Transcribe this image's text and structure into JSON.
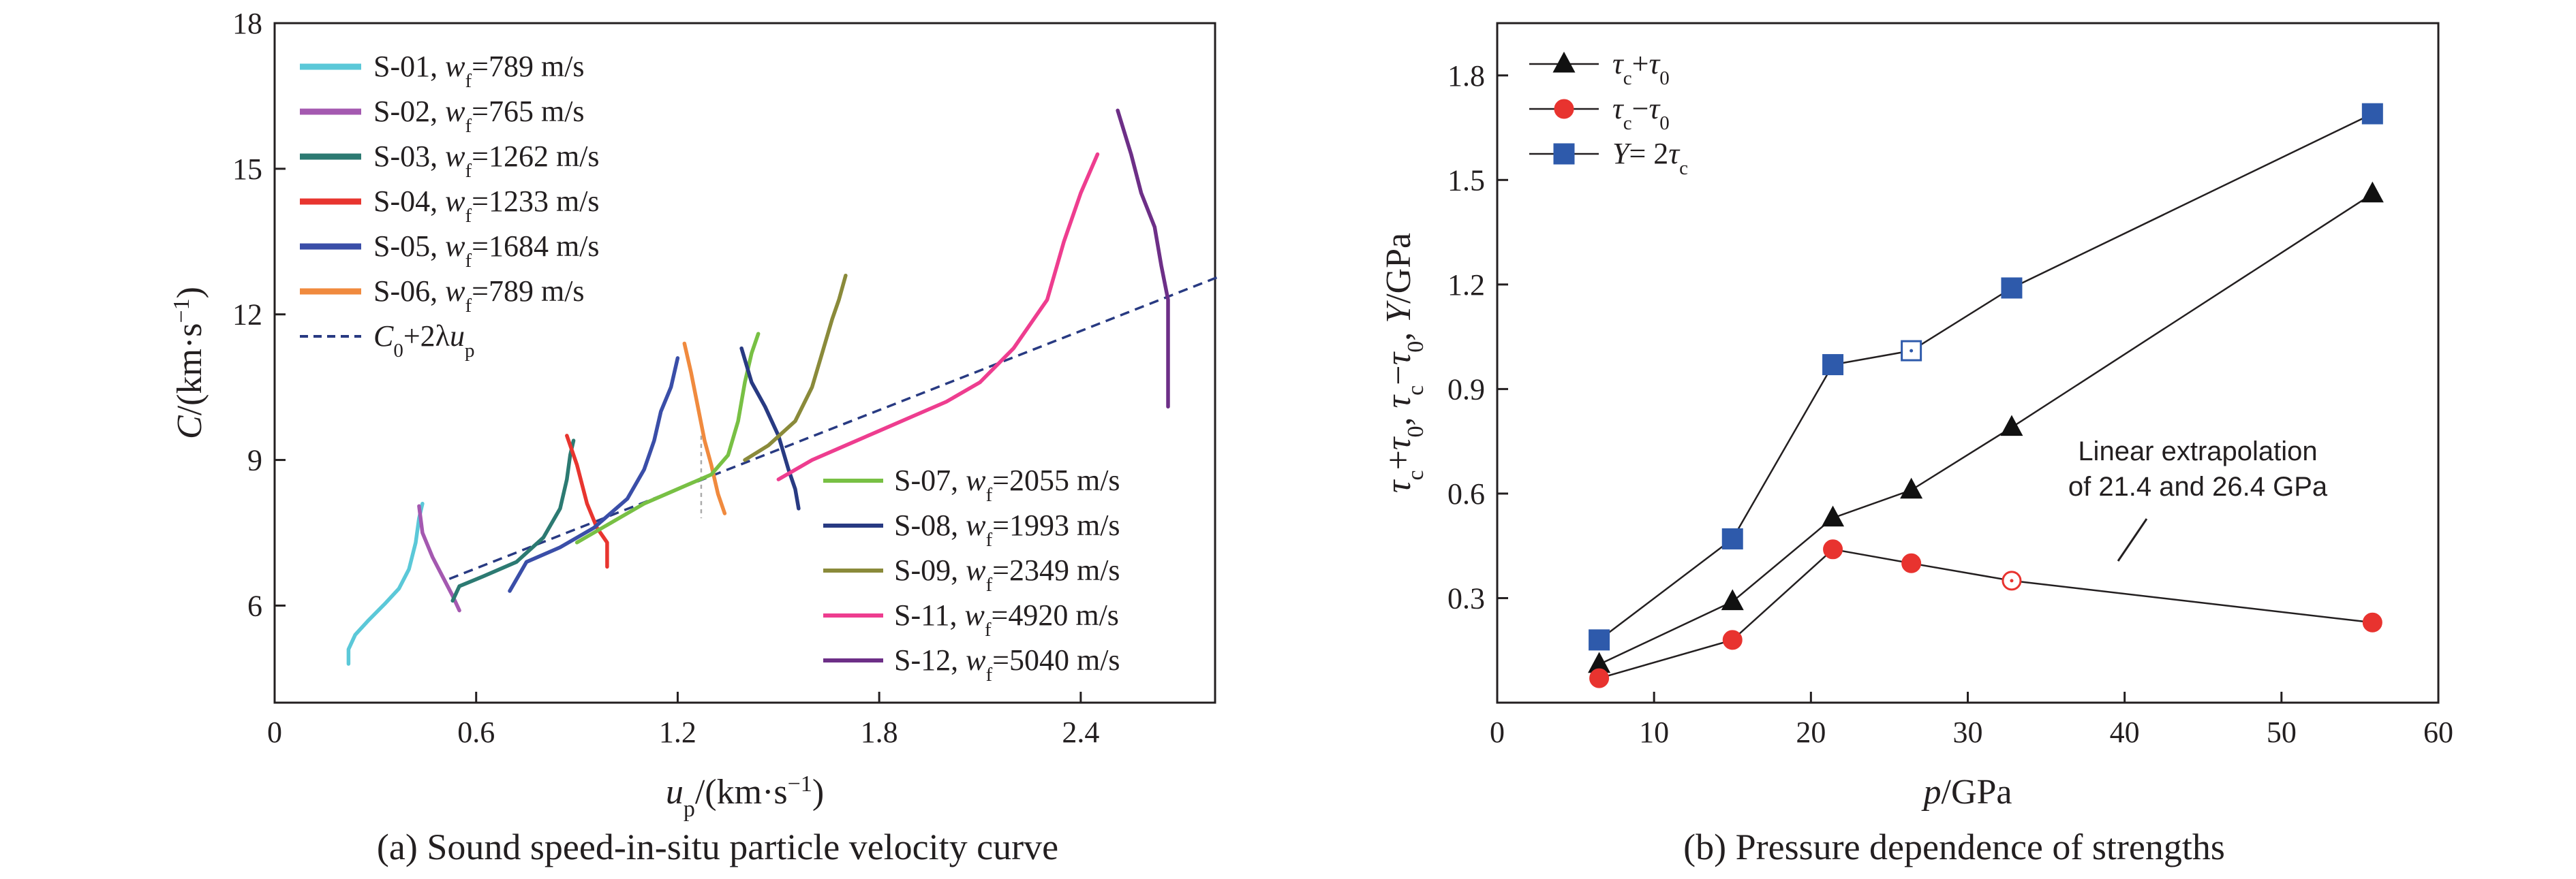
{
  "chart_data": [
    {
      "type": "line",
      "caption": "(a) Sound speed-in-situ particle velocity curve",
      "xlabel_main": "u",
      "xlabel_sub": "p",
      "xlabel_units": "/(km·s",
      "xlabel_exp": "−1",
      "xlabel_close": ")",
      "ylabel_main": "C",
      "ylabel_units": "/(km·s",
      "ylabel_exp": "−1",
      "ylabel_close": ")",
      "xlim": [
        0,
        2.8
      ],
      "ylim": [
        4,
        18
      ],
      "xticks": [
        0,
        0.6,
        1.2,
        1.8,
        2.4
      ],
      "xtick_labels": [
        "0",
        "0.6",
        "1.2",
        "1.8",
        "2.4"
      ],
      "yticks": [
        6,
        9,
        12,
        15,
        18
      ],
      "ytick_labels": [
        "6",
        "9",
        "12",
        "15",
        "18"
      ],
      "series": [
        {
          "name": "S-01",
          "wf": "789 m/s",
          "color": "#5bc8d8",
          "points": [
            [
              0.22,
              4.8
            ],
            [
              0.22,
              5.1
            ],
            [
              0.24,
              5.4
            ],
            [
              0.28,
              5.7
            ],
            [
              0.33,
              6.05
            ],
            [
              0.37,
              6.35
            ],
            [
              0.4,
              6.75
            ],
            [
              0.42,
              7.3
            ],
            [
              0.43,
              7.8
            ],
            [
              0.44,
              8.1
            ]
          ]
        },
        {
          "name": "S-02",
          "wf": "765 m/s",
          "color": "#a459b0",
          "points": [
            [
              0.43,
              8.05
            ],
            [
              0.44,
              7.5
            ],
            [
              0.47,
              7.0
            ],
            [
              0.5,
              6.6
            ],
            [
              0.53,
              6.2
            ],
            [
              0.55,
              5.9
            ]
          ]
        },
        {
          "name": "S-03",
          "wf": "1262 m/s",
          "color": "#2c7a72",
          "points": [
            [
              0.53,
              6.1
            ],
            [
              0.55,
              6.4
            ],
            [
              0.62,
              6.6
            ],
            [
              0.72,
              6.9
            ],
            [
              0.8,
              7.4
            ],
            [
              0.85,
              8.0
            ],
            [
              0.87,
              8.6
            ],
            [
              0.88,
              9.1
            ],
            [
              0.89,
              9.4
            ]
          ]
        },
        {
          "name": "S-04",
          "wf": "1233 m/s",
          "color": "#e8352f",
          "points": [
            [
              0.87,
              9.5
            ],
            [
              0.9,
              8.9
            ],
            [
              0.93,
              8.1
            ],
            [
              0.96,
              7.6
            ],
            [
              0.99,
              7.3
            ],
            [
              0.99,
              6.8
            ]
          ]
        },
        {
          "name": "S-05",
          "wf": "1684 m/s",
          "color": "#3a4ea8",
          "points": [
            [
              0.7,
              6.3
            ],
            [
              0.75,
              6.9
            ],
            [
              0.85,
              7.2
            ],
            [
              0.95,
              7.6
            ],
            [
              1.05,
              8.2
            ],
            [
              1.1,
              8.8
            ],
            [
              1.13,
              9.4
            ],
            [
              1.15,
              10.0
            ],
            [
              1.18,
              10.5
            ],
            [
              1.2,
              11.1
            ]
          ]
        },
        {
          "name": "S-06",
          "wf": "789 m/s",
          "color": "#f08a3e",
          "points": [
            [
              1.22,
              11.4
            ],
            [
              1.24,
              10.8
            ],
            [
              1.26,
              10.1
            ],
            [
              1.28,
              9.4
            ],
            [
              1.3,
              8.9
            ],
            [
              1.32,
              8.3
            ],
            [
              1.34,
              7.9
            ]
          ]
        },
        {
          "name": "S-07",
          "wf": "2055 m/s",
          "color": "#78c044",
          "points": [
            [
              0.9,
              7.3
            ],
            [
              1.0,
              7.7
            ],
            [
              1.1,
              8.1
            ],
            [
              1.2,
              8.4
            ],
            [
              1.3,
              8.7
            ],
            [
              1.35,
              9.1
            ],
            [
              1.38,
              9.8
            ],
            [
              1.4,
              10.6
            ],
            [
              1.42,
              11.2
            ],
            [
              1.44,
              11.6
            ]
          ]
        },
        {
          "name": "S-08",
          "wf": "1993 m/s",
          "color": "#283a82",
          "points": [
            [
              1.39,
              11.3
            ],
            [
              1.42,
              10.6
            ],
            [
              1.46,
              10.1
            ],
            [
              1.5,
              9.5
            ],
            [
              1.53,
              8.8
            ],
            [
              1.55,
              8.4
            ],
            [
              1.56,
              8.0
            ]
          ]
        },
        {
          "name": "S-09",
          "wf": "2349 m/s",
          "color": "#8a8a3a",
          "points": [
            [
              1.4,
              9.0
            ],
            [
              1.47,
              9.3
            ],
            [
              1.55,
              9.8
            ],
            [
              1.6,
              10.5
            ],
            [
              1.63,
              11.2
            ],
            [
              1.66,
              11.9
            ],
            [
              1.68,
              12.3
            ],
            [
              1.7,
              12.8
            ]
          ]
        },
        {
          "name": "S-11",
          "wf": "4920 m/s",
          "color": "#ee3d8f",
          "points": [
            [
              1.5,
              8.6
            ],
            [
              1.6,
              9.0
            ],
            [
              1.7,
              9.3
            ],
            [
              1.8,
              9.6
            ],
            [
              1.9,
              9.9
            ],
            [
              2.0,
              10.2
            ],
            [
              2.1,
              10.6
            ],
            [
              2.2,
              11.3
            ],
            [
              2.3,
              12.3
            ],
            [
              2.35,
              13.5
            ],
            [
              2.4,
              14.5
            ],
            [
              2.45,
              15.3
            ]
          ]
        },
        {
          "name": "S-12",
          "wf": "5040 m/s",
          "color": "#6d2f87",
          "points": [
            [
              2.51,
              16.2
            ],
            [
              2.55,
              15.3
            ],
            [
              2.58,
              14.5
            ],
            [
              2.62,
              13.8
            ],
            [
              2.64,
              13.0
            ],
            [
              2.66,
              12.3
            ],
            [
              2.66,
              11.2
            ],
            [
              2.66,
              10.1
            ]
          ]
        }
      ],
      "fit": {
        "color": "#283a82",
        "points": [
          [
            0.52,
            6.55
          ],
          [
            2.82,
            12.8
          ]
        ]
      },
      "legend_top": [
        "S-01",
        "S-02",
        "S-03",
        "S-04",
        "S-05",
        "S-06"
      ],
      "legend_bottom": [
        "S-07",
        "S-08",
        "S-09",
        "S-11",
        "S-12"
      ]
    },
    {
      "type": "line",
      "caption": "(b) Pressure dependence of strengths",
      "xlabel_main": "p",
      "xlabel_units": "/GPa",
      "xlim": [
        0,
        60
      ],
      "ylim": [
        0,
        1.95
      ],
      "xticks": [
        0,
        10,
        20,
        30,
        40,
        50,
        60
      ],
      "xtick_labels": [
        "0",
        "10",
        "20",
        "30",
        "40",
        "50",
        "60"
      ],
      "yticks": [
        0.3,
        0.6,
        0.9,
        1.2,
        1.5,
        1.8
      ],
      "ytick_labels": [
        "0.3",
        "0.6",
        "0.9",
        "1.2",
        "1.5",
        "1.8"
      ],
      "series": [
        {
          "id": "sum",
          "marker": "triangle",
          "color": "#111111",
          "points": [
            [
              6.5,
              0.11
            ],
            [
              15,
              0.29
            ],
            [
              21.4,
              0.53
            ],
            [
              26.4,
              0.61
            ],
            [
              32.8,
              0.79
            ],
            [
              55.8,
              1.46
            ]
          ]
        },
        {
          "id": "diff",
          "marker": "circle",
          "color": "#e8332f",
          "points": [
            [
              6.5,
              0.07
            ],
            [
              15,
              0.18
            ],
            [
              21.4,
              0.44
            ],
            [
              26.4,
              0.4
            ],
            [
              32.8,
              0.35
            ],
            [
              55.8,
              0.23
            ]
          ],
          "hollow_index": 4
        },
        {
          "id": "Y",
          "marker": "square",
          "color": "#2e5aab",
          "points": [
            [
              6.5,
              0.18
            ],
            [
              15,
              0.47
            ],
            [
              21.4,
              0.97
            ],
            [
              26.4,
              1.01
            ],
            [
              32.8,
              1.19
            ],
            [
              55.8,
              1.69
            ]
          ],
          "hollow_index": 3
        }
      ],
      "annotation_lines": [
        "Linear extrapolation",
        "of 21.4 and 26.4 GPa"
      ]
    }
  ]
}
